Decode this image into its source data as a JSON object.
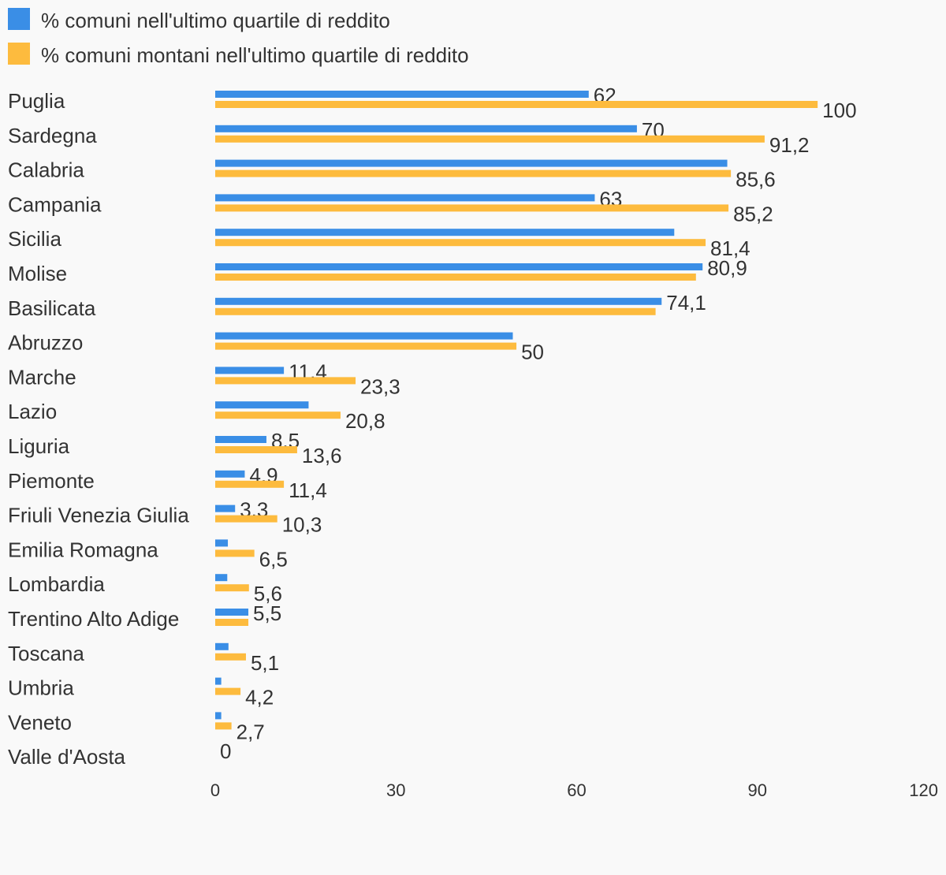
{
  "colors": {
    "series1": "#3a8ee6",
    "series2": "#fdbb3e",
    "background": "#f9f9f9",
    "text": "#333333"
  },
  "legend": [
    {
      "label": "% comuni nell'ultimo quartile di reddito",
      "color": "#3a8ee6"
    },
    {
      "label": "% comuni montani nell'ultimo quartile di reddito",
      "color": "#fdbb3e"
    }
  ],
  "chart_data": {
    "type": "bar",
    "orientation": "horizontal",
    "categories": [
      "Puglia",
      "Sardegna",
      "Calabria",
      "Campania",
      "Sicilia",
      "Molise",
      "Basilicata",
      "Abruzzo",
      "Marche",
      "Lazio",
      "Liguria",
      "Piemonte",
      "Friuli Venezia Giulia",
      "Emilia Romagna",
      "Lombardia",
      "Trentino Alto Adige",
      "Toscana",
      "Umbria",
      "Veneto",
      "Valle d'Aosta"
    ],
    "series": [
      {
        "name": "% comuni nell'ultimo quartile di reddito",
        "values": [
          62,
          70,
          85,
          63,
          76.2,
          80.9,
          74.1,
          49.4,
          11.4,
          15.5,
          8.5,
          4.9,
          3.3,
          2.1,
          2.0,
          5.5,
          2.2,
          1.0,
          1.0,
          0
        ],
        "labels": [
          "62",
          "70",
          "",
          "63",
          "",
          "80,9",
          "74,1",
          "",
          "11,4",
          "",
          "8,5",
          "4,9",
          "3,3",
          "",
          "",
          "5,5",
          "",
          "",
          "",
          "0"
        ]
      },
      {
        "name": "% comuni montani nell'ultimo quartile di reddito",
        "values": [
          100,
          91.2,
          85.6,
          85.2,
          81.4,
          79.8,
          73.1,
          50,
          23.3,
          20.8,
          13.6,
          11.4,
          10.3,
          6.5,
          5.6,
          5.5,
          5.1,
          4.2,
          2.7,
          0
        ],
        "labels": [
          "100",
          "91,2",
          "85,6",
          "85,2",
          "81,4",
          "",
          "",
          "50",
          "23,3",
          "20,8",
          "13,6",
          "11,4",
          "10,3",
          "6,5",
          "5,6",
          "",
          "5,1",
          "4,2",
          "2,7",
          ""
        ]
      }
    ],
    "xlim": [
      0,
      120
    ],
    "xticks": [
      "0",
      "30",
      "60",
      "90",
      "120"
    ],
    "legend_position": "top-left"
  }
}
